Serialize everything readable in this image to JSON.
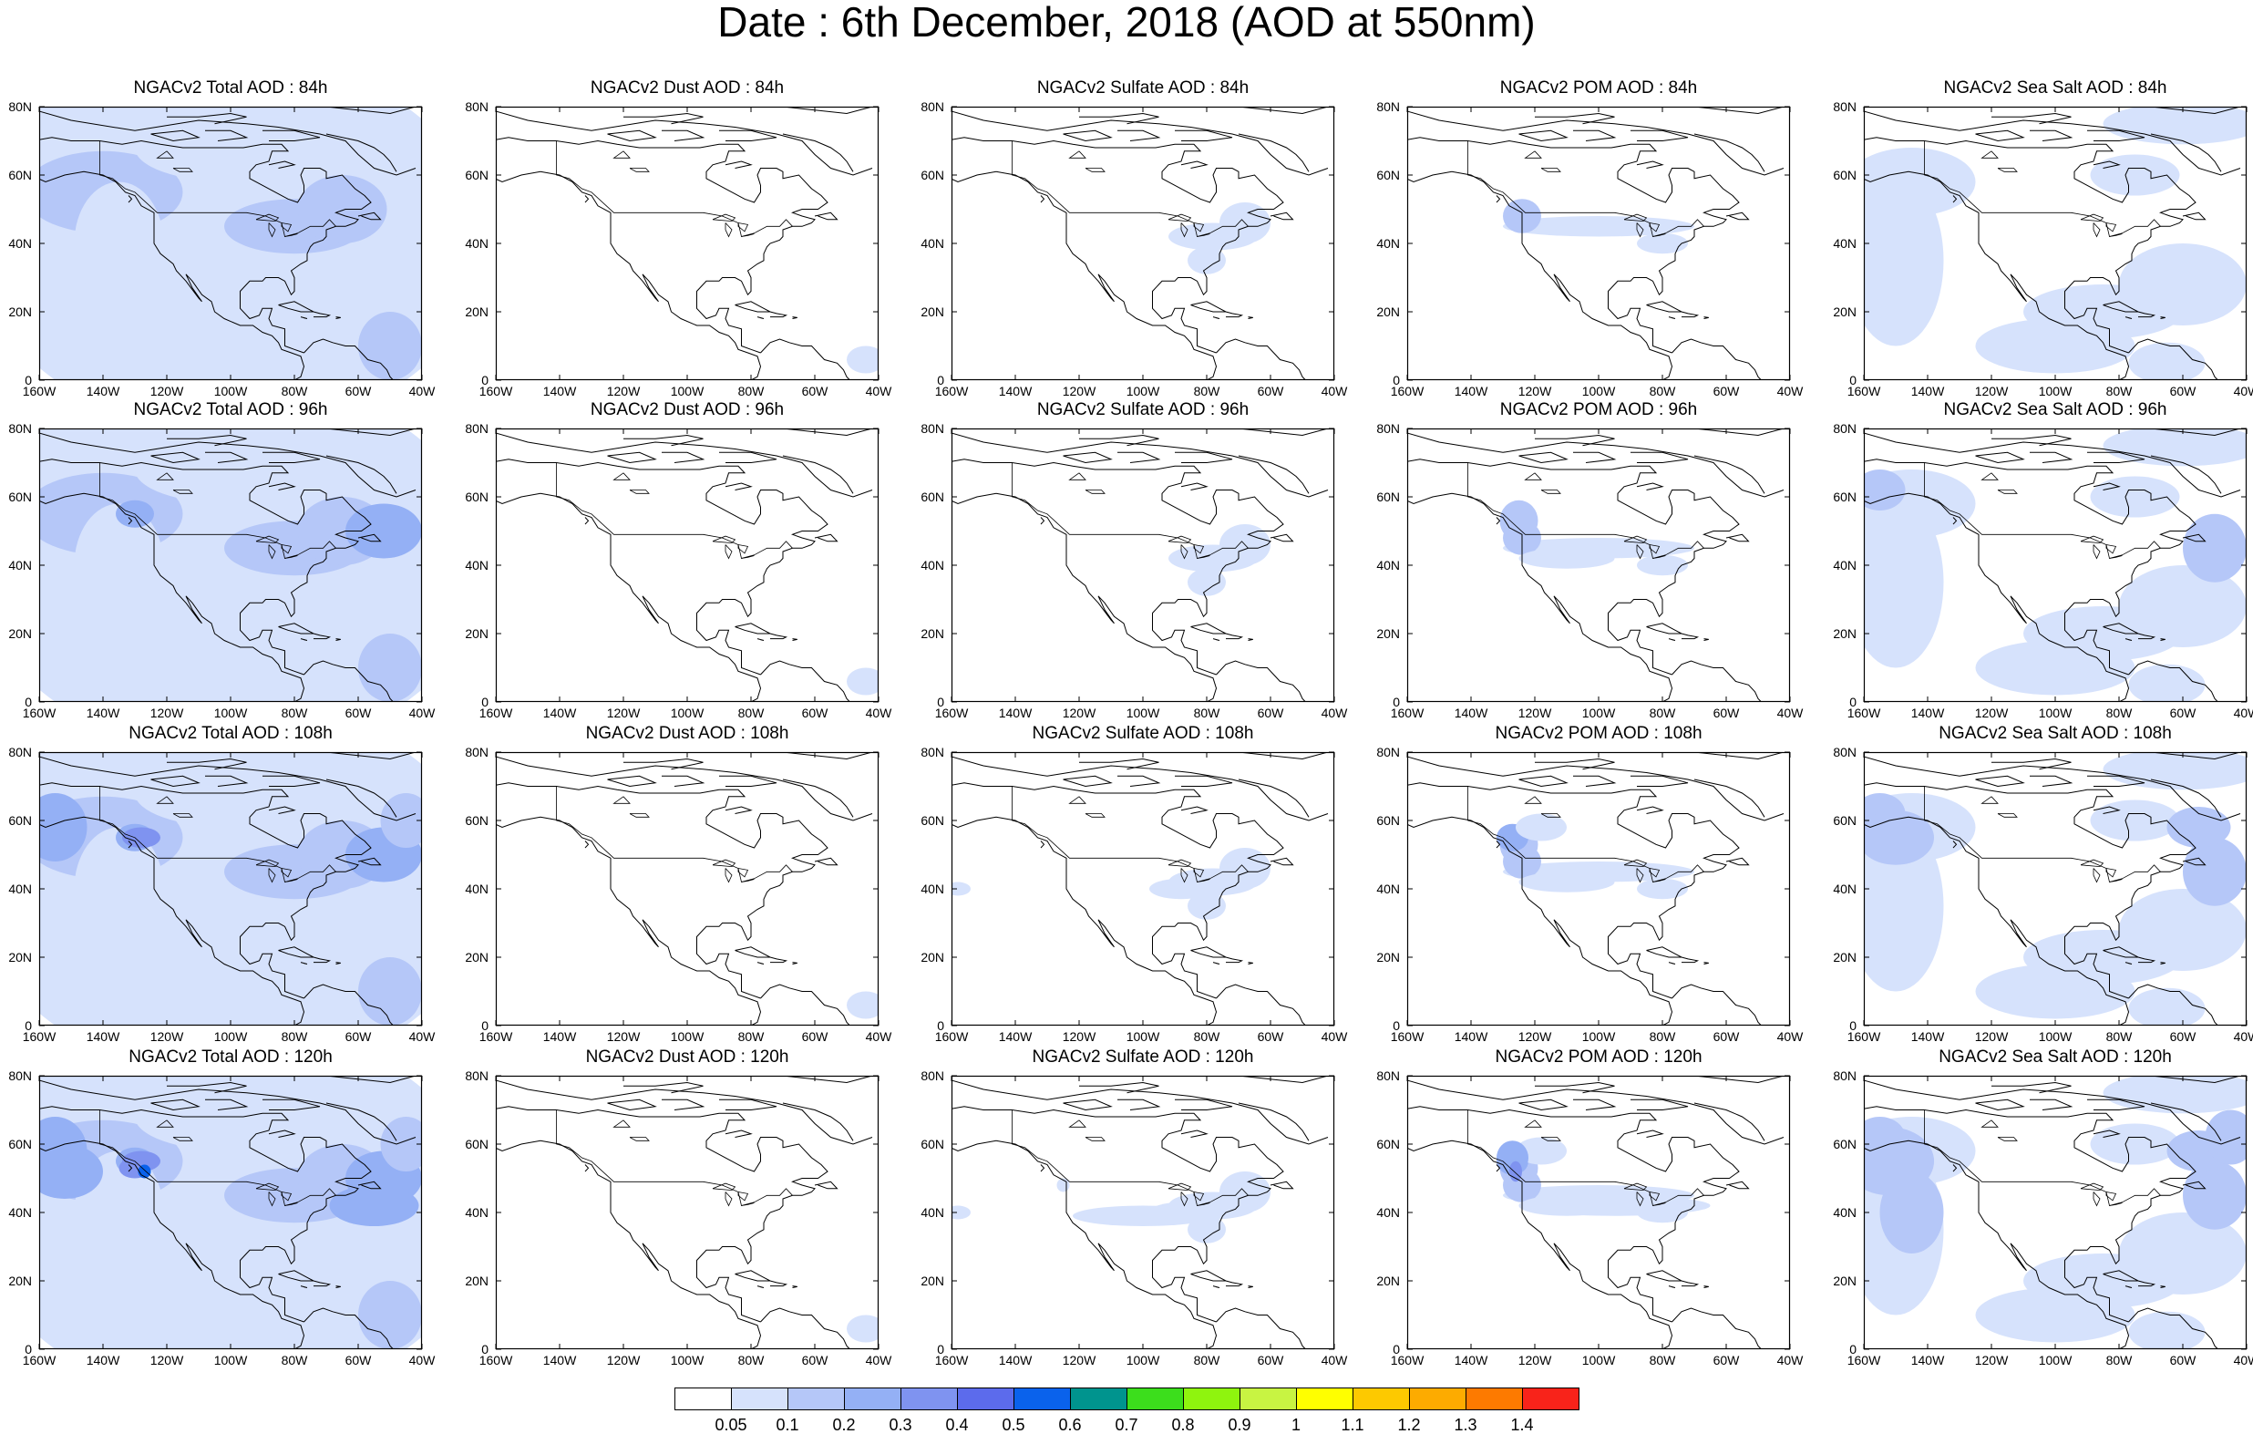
{
  "title": "Date : 6th December, 2018 (AOD at 550nm)",
  "columns": [
    {
      "key": "total",
      "titles": [
        "NGACv2 Total AOD : 84h",
        "NGACv2 Total AOD : 96h",
        "NGACv2 Total AOD : 108h",
        "NGACv2 Total AOD : 120h"
      ]
    },
    {
      "key": "dust",
      "titles": [
        "NGACv2 Dust AOD : 84h",
        "NGACv2 Dust AOD : 96h",
        "NGACv2 Dust AOD : 108h",
        "NGACv2 Dust AOD : 120h"
      ]
    },
    {
      "key": "sulfate",
      "titles": [
        "NGACv2 Sulfate AOD : 84h",
        "NGACv2 Sulfate AOD : 96h",
        "NGACv2 Sulfate AOD : 108h",
        "NGACv2 Sulfate AOD : 120h"
      ]
    },
    {
      "key": "pom",
      "titles": [
        "NGACv2 POM AOD : 84h",
        "NGACv2 POM AOD : 96h",
        "NGACv2 POM AOD : 108h",
        "NGACv2 POM AOD : 120h"
      ]
    },
    {
      "key": "seasalt",
      "titles": [
        "NGACv2 Sea Salt AOD : 84h",
        "NGACv2 Sea Salt AOD : 96h",
        "NGACv2 Sea Salt AOD : 108h",
        "NGACv2 Sea Salt  AOD : 120h"
      ]
    }
  ],
  "lat_ticks": [
    "80N",
    "60N",
    "40N",
    "20N",
    "0"
  ],
  "lon_ticks": [
    "160W",
    "140W",
    "120W",
    "100W",
    "80W",
    "60W",
    "40W"
  ],
  "extent": {
    "lon_min": -160,
    "lon_max": -40,
    "lat_min": 0,
    "lat_max": 80
  },
  "colorbar": {
    "levels": [
      "0.05",
      "0.1",
      "0.2",
      "0.3",
      "0.4",
      "0.5",
      "0.6",
      "0.7",
      "0.8",
      "0.9",
      "1",
      "1.1",
      "1.2",
      "1.3",
      "1.4"
    ],
    "colors": [
      "#ffffff",
      "#d6e2fc",
      "#b5c7f8",
      "#94b0f5",
      "#7f93f0",
      "#5c6bec",
      "#0a62ec",
      "#00948e",
      "#3cde1c",
      "#8ff40e",
      "#c8f442",
      "#ffff00",
      "#fdc900",
      "#fdab00",
      "#fd7a00",
      "#f8231a"
    ]
  }
}
